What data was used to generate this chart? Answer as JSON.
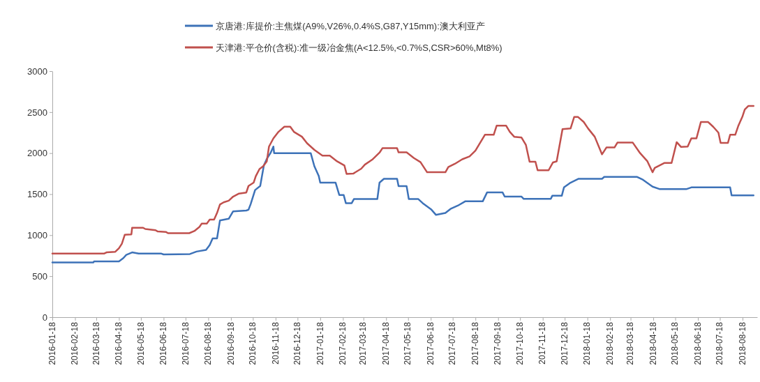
{
  "chart_data": {
    "type": "line",
    "legend": "top",
    "marker": "none",
    "line_style": "solid",
    "grid": false,
    "xlim": [
      "2016-01-18",
      "2018-09-07"
    ],
    "ylim": [
      0,
      3000
    ],
    "yticks": [
      0,
      500,
      1000,
      1500,
      2000,
      2500,
      3000
    ],
    "xticks": [
      "2016-01-18",
      "2016-02-18",
      "2016-03-18",
      "2016-04-18",
      "2016-05-18",
      "2016-06-18",
      "2016-07-18",
      "2016-08-18",
      "2016-09-18",
      "2016-10-18",
      "2016-11-18",
      "2016-12-18",
      "2017-01-18",
      "2017-02-18",
      "2017-03-18",
      "2017-04-18",
      "2017-05-18",
      "2017-06-18",
      "2017-07-18",
      "2017-08-18",
      "2017-09-18",
      "2017-10-18",
      "2017-11-18",
      "2017-12-18",
      "2018-01-18",
      "2018-02-18",
      "2018-03-18",
      "2018-04-18",
      "2018-05-18",
      "2018-06-18",
      "2018-07-18",
      "2018-08-18"
    ],
    "series": [
      {
        "name": "京唐港:库提价:主焦煤(A9%,V26%,0.4%S,G87,Y15mm):澳大利亚产",
        "color": "#3d72b8",
        "x": [
          "2016-01-18",
          "2016-03-14",
          "2016-03-15",
          "2016-04-18",
          "2016-04-24",
          "2016-04-28",
          "2016-05-06",
          "2016-05-15",
          "2016-06-15",
          "2016-06-18",
          "2016-07-24",
          "2016-08-02",
          "2016-08-15",
          "2016-08-20",
          "2016-08-24",
          "2016-08-30",
          "2016-09-03",
          "2016-09-15",
          "2016-09-21",
          "2016-10-09",
          "2016-10-12",
          "2016-10-15",
          "2016-10-21",
          "2016-10-28",
          "2016-11-02",
          "2016-11-06",
          "2016-11-11",
          "2016-11-15",
          "2016-11-16",
          "2017-01-05",
          "2017-01-10",
          "2017-01-16",
          "2017-01-18",
          "2017-02-08",
          "2017-02-13",
          "2017-02-19",
          "2017-02-22",
          "2017-03-02",
          "2017-03-05",
          "2017-04-06",
          "2017-04-09",
          "2017-04-15",
          "2017-05-03",
          "2017-05-05",
          "2017-05-16",
          "2017-05-19",
          "2017-06-01",
          "2017-06-07",
          "2017-06-19",
          "2017-06-25",
          "2017-07-08",
          "2017-07-15",
          "2017-07-25",
          "2017-08-04",
          "2017-08-28",
          "2017-09-03",
          "2017-09-24",
          "2017-09-27",
          "2017-10-20",
          "2017-10-23",
          "2017-11-29",
          "2017-12-01",
          "2017-12-14",
          "2017-12-17",
          "2017-12-26",
          "2018-01-06",
          "2018-02-07",
          "2018-02-10",
          "2018-03-27",
          "2018-04-03",
          "2018-04-17",
          "2018-04-27",
          "2018-06-02",
          "2018-06-09",
          "2018-08-01",
          "2018-08-03",
          "2018-09-02"
        ],
        "values": [
          667,
          667,
          680,
          680,
          720,
          760,
          790,
          775,
          775,
          765,
          770,
          800,
          820,
          880,
          960,
          960,
          1180,
          1200,
          1290,
          1300,
          1310,
          1380,
          1550,
          1600,
          1850,
          1930,
          2000,
          2080,
          2000,
          2000,
          1840,
          1720,
          1640,
          1640,
          1490,
          1490,
          1390,
          1390,
          1440,
          1440,
          1640,
          1687,
          1687,
          1597,
          1597,
          1440,
          1440,
          1390,
          1310,
          1248,
          1270,
          1320,
          1360,
          1412,
          1412,
          1522,
          1522,
          1470,
          1470,
          1442,
          1442,
          1480,
          1480,
          1582,
          1640,
          1687,
          1687,
          1710,
          1710,
          1680,
          1591,
          1561,
          1561,
          1582,
          1582,
          1486,
          1486
        ]
      },
      {
        "name": "天津港:平仓价(含税):准一级冶金焦(A<12.5%,<0.7%S,CSR>60%,Mt8%)",
        "color": "#c0504d",
        "x": [
          "2016-01-18",
          "2016-03-29",
          "2016-04-01",
          "2016-04-13",
          "2016-04-18",
          "2016-04-22",
          "2016-04-26",
          "2016-05-05",
          "2016-05-06",
          "2016-05-21",
          "2016-05-24",
          "2016-06-07",
          "2016-06-10",
          "2016-06-21",
          "2016-06-24",
          "2016-07-23",
          "2016-07-30",
          "2016-08-06",
          "2016-08-09",
          "2016-08-16",
          "2016-08-20",
          "2016-08-26",
          "2016-08-30",
          "2016-09-03",
          "2016-09-08",
          "2016-09-15",
          "2016-09-21",
          "2016-09-29",
          "2016-10-09",
          "2016-10-12",
          "2016-10-19",
          "2016-10-22",
          "2016-10-27",
          "2016-11-01",
          "2016-11-06",
          "2016-11-09",
          "2016-11-15",
          "2016-11-22",
          "2016-11-30",
          "2016-12-08",
          "2016-12-13",
          "2016-12-24",
          "2016-12-31",
          "2017-01-10",
          "2017-01-21",
          "2017-01-31",
          "2017-02-10",
          "2017-02-20",
          "2017-02-23",
          "2017-03-04",
          "2017-03-15",
          "2017-03-20",
          "2017-03-30",
          "2017-04-09",
          "2017-04-13",
          "2017-05-03",
          "2017-05-05",
          "2017-05-16",
          "2017-05-26",
          "2017-06-04",
          "2017-06-13",
          "2017-07-08",
          "2017-07-12",
          "2017-07-21",
          "2017-07-31",
          "2017-08-10",
          "2017-08-18",
          "2017-08-24",
          "2017-08-31",
          "2017-09-12",
          "2017-09-16",
          "2017-09-29",
          "2017-10-04",
          "2017-10-10",
          "2017-10-20",
          "2017-10-26",
          "2017-10-31",
          "2017-11-08",
          "2017-11-11",
          "2017-11-26",
          "2017-12-02",
          "2017-12-07",
          "2017-12-15",
          "2017-12-26",
          "2017-12-31",
          "2018-01-05",
          "2018-01-13",
          "2018-01-19",
          "2018-01-28",
          "2018-02-07",
          "2018-02-13",
          "2018-02-24",
          "2018-02-28",
          "2018-03-21",
          "2018-03-31",
          "2018-04-10",
          "2018-04-17",
          "2018-04-20",
          "2018-05-03",
          "2018-05-13",
          "2018-05-20",
          "2018-05-26",
          "2018-06-04",
          "2018-06-09",
          "2018-06-16",
          "2018-06-22",
          "2018-07-02",
          "2018-07-09",
          "2018-07-16",
          "2018-07-19",
          "2018-07-29",
          "2018-08-01",
          "2018-08-08",
          "2018-08-12",
          "2018-08-18",
          "2018-08-21",
          "2018-08-26",
          "2018-09-02"
        ],
        "values": [
          776,
          776,
          790,
          797,
          840,
          895,
          1006,
          1010,
          1090,
          1090,
          1075,
          1060,
          1045,
          1040,
          1024,
          1024,
          1050,
          1100,
          1140,
          1140,
          1190,
          1190,
          1270,
          1373,
          1400,
          1420,
          1470,
          1507,
          1520,
          1600,
          1640,
          1720,
          1806,
          1840,
          1900,
          2080,
          2180,
          2260,
          2322,
          2322,
          2260,
          2200,
          2120,
          2040,
          1970,
          1970,
          1900,
          1850,
          1746,
          1750,
          1810,
          1860,
          1920,
          2006,
          2060,
          2060,
          2009,
          2009,
          1940,
          1890,
          1767,
          1767,
          1830,
          1870,
          1925,
          1960,
          2030,
          2119,
          2224,
          2224,
          2334,
          2334,
          2260,
          2200,
          2190,
          2100,
          1895,
          1895,
          1791,
          1791,
          1887,
          1900,
          2292,
          2300,
          2442,
          2442,
          2380,
          2300,
          2200,
          1985,
          2069,
          2069,
          2128,
          2128,
          2000,
          1900,
          1767,
          1820,
          1880,
          1880,
          2134,
          2075,
          2080,
          2179,
          2180,
          2379,
          2379,
          2320,
          2250,
          2125,
          2125,
          2224,
          2224,
          2328,
          2450,
          2531,
          2576,
          2576
        ]
      }
    ]
  }
}
